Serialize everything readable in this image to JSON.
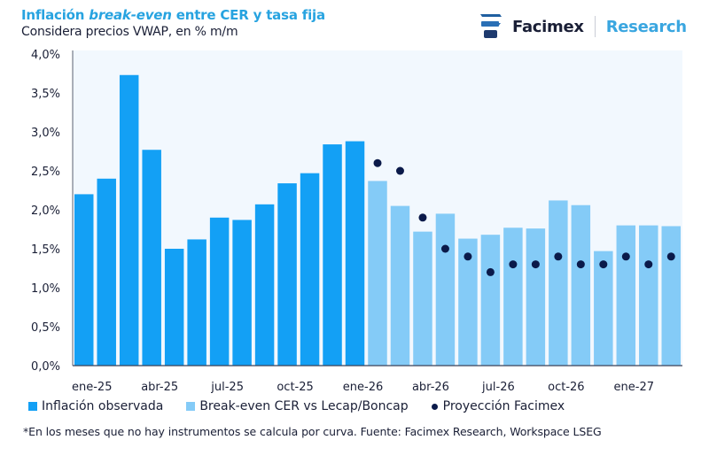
{
  "header": {
    "title_prefix": "Inflación ",
    "title_italic": "break-even",
    "title_suffix": " entre CER y tasa fija",
    "subtitle": "Considera precios VWAP, en % m/m"
  },
  "logo": {
    "brand": "Facimex",
    "section": "Research"
  },
  "colors": {
    "observed": "#13a0f5",
    "breakeven": "#84cbf7",
    "projection": "#0b1a4a",
    "plot_bg": "#f2f8fe",
    "title": "#27a3e0"
  },
  "chart_data": {
    "type": "bar",
    "title": "Inflación break-even entre CER y tasa fija",
    "subtitle": "Considera precios VWAP, en % m/m",
    "xlabel": "",
    "ylabel": "% m/m",
    "ylim": [
      0,
      4.0
    ],
    "yticks": [
      "0,0%",
      "0,5%",
      "1,0%",
      "1,5%",
      "2,0%",
      "2,5%",
      "3,0%",
      "3,5%",
      "4,0%"
    ],
    "ytick_values": [
      0,
      0.5,
      1.0,
      1.5,
      2.0,
      2.5,
      3.0,
      3.5,
      4.0
    ],
    "categories": [
      "ene-25",
      "feb-25",
      "mar-25",
      "abr-25",
      "may-25",
      "jun-25",
      "jul-25",
      "ago-25",
      "sep-25",
      "oct-25",
      "nov-25",
      "dic-25",
      "ene-26",
      "feb-26",
      "mar-26",
      "abr-26",
      "may-26",
      "jun-26",
      "jul-26",
      "ago-26",
      "sep-26",
      "oct-26",
      "nov-26",
      "dic-26",
      "ene-27",
      "feb-27",
      "mar-27"
    ],
    "xtick_labels": [
      {
        "index": 0,
        "label": "ene-25"
      },
      {
        "index": 3,
        "label": "abr-25"
      },
      {
        "index": 6,
        "label": "jul-25"
      },
      {
        "index": 9,
        "label": "oct-25"
      },
      {
        "index": 12,
        "label": "ene-26"
      },
      {
        "index": 15,
        "label": "abr-26"
      },
      {
        "index": 18,
        "label": "jul-26"
      },
      {
        "index": 21,
        "label": "oct-26"
      },
      {
        "index": 24,
        "label": "ene-27"
      }
    ],
    "series": [
      {
        "name": "Inflación observada",
        "kind": "bar",
        "values": [
          2.2,
          2.4,
          3.73,
          2.77,
          1.5,
          1.62,
          1.9,
          1.87,
          2.07,
          2.34,
          2.47,
          2.84,
          2.88,
          null,
          null,
          null,
          null,
          null,
          null,
          null,
          null,
          null,
          null,
          null,
          null,
          null,
          null
        ]
      },
      {
        "name": "Break-even CER vs Lecap/Boncap",
        "kind": "bar",
        "values": [
          null,
          null,
          null,
          null,
          null,
          null,
          null,
          null,
          null,
          null,
          null,
          null,
          null,
          2.37,
          2.05,
          1.72,
          1.95,
          1.63,
          1.68,
          1.77,
          1.76,
          2.12,
          2.06,
          1.47,
          1.8,
          1.8,
          1.79
        ]
      },
      {
        "name": "Proyección Facimex",
        "kind": "scatter",
        "values": [
          null,
          null,
          null,
          null,
          null,
          null,
          null,
          null,
          null,
          null,
          null,
          null,
          null,
          2.6,
          2.5,
          1.9,
          1.5,
          1.4,
          1.2,
          1.3,
          1.3,
          1.4,
          1.3,
          1.3,
          1.4,
          1.3,
          1.4
        ]
      }
    ],
    "grid": false,
    "legend_position": "bottom"
  },
  "legend": {
    "observed": "Inflación observada",
    "breakeven": "Break-even CER vs Lecap/Boncap",
    "projection": "Proyección Facimex"
  },
  "footnote": "*En los meses que no hay instrumentos se calcula por curva. Fuente: Facimex Research, Workspace LSEG"
}
